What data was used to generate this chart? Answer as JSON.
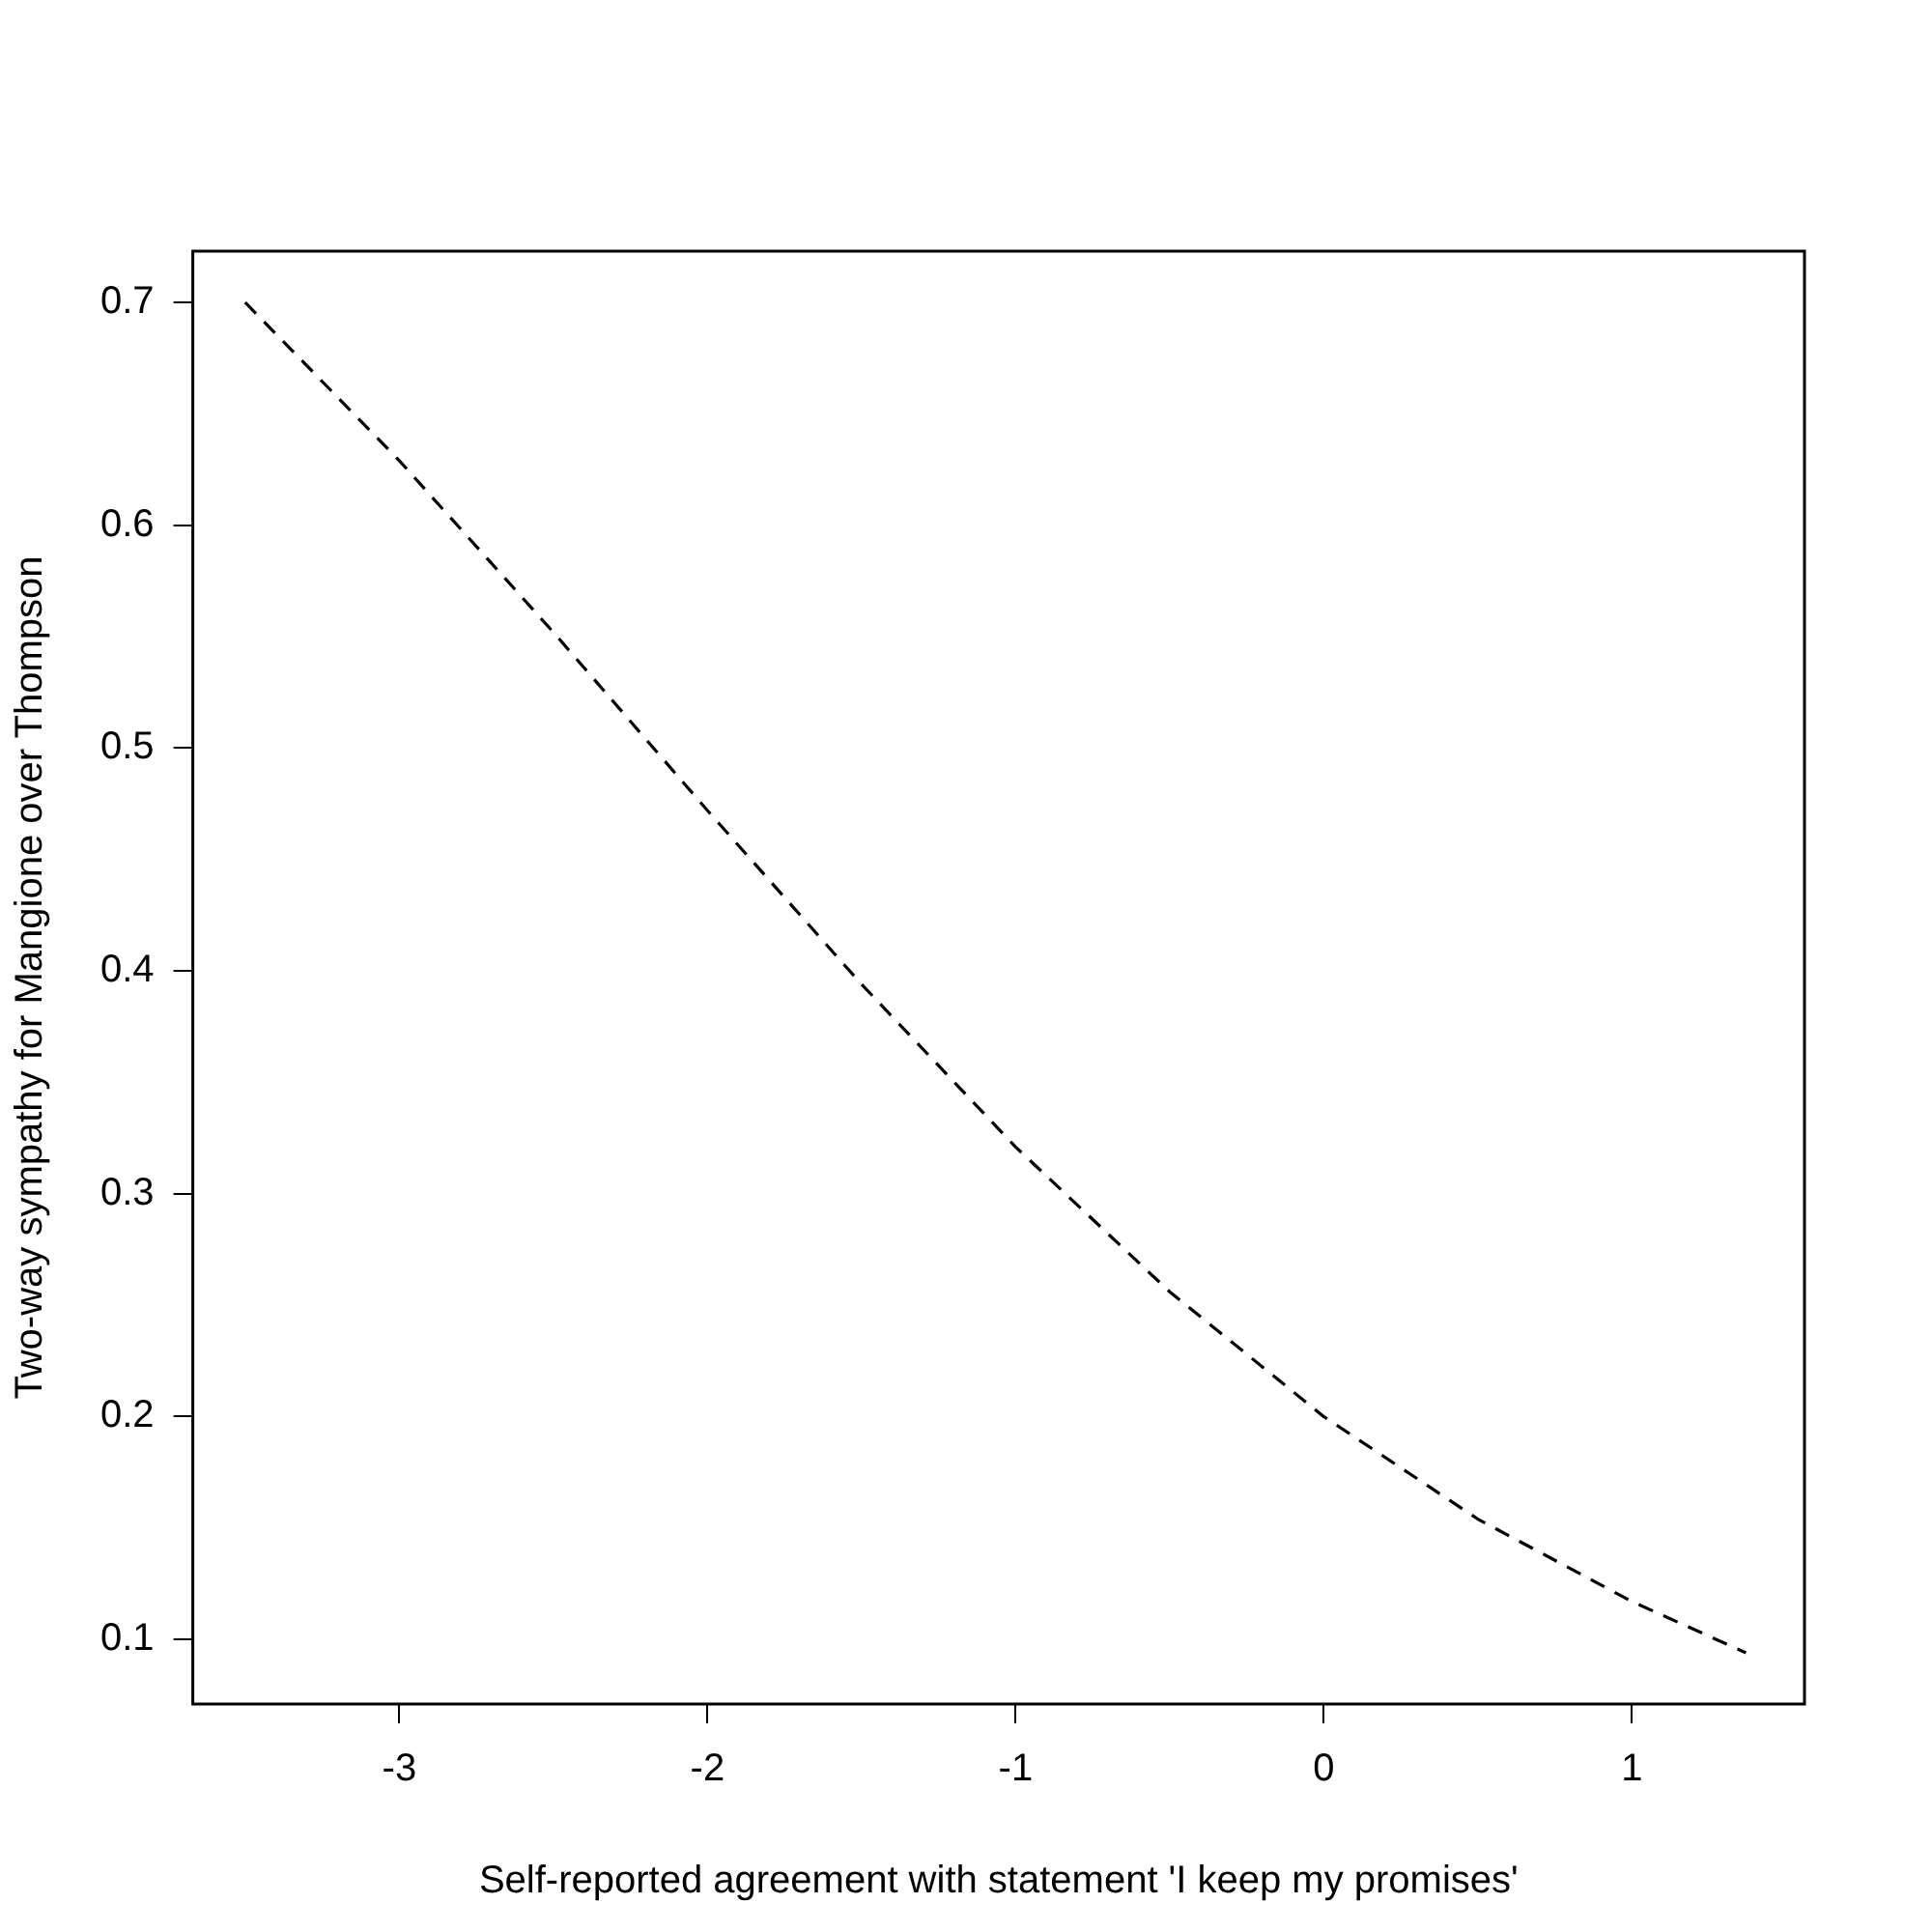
{
  "chart_data": {
    "type": "line",
    "xlabel": "Self-reported agreement with statement 'I keep my promises'",
    "ylabel": "Two-way sympathy for Mangione over Thompson",
    "x": [
      -3.5,
      -3,
      -2.5,
      -2,
      -1.5,
      -1,
      -0.5,
      0,
      0.5,
      1,
      1.37
    ],
    "series": [
      {
        "color": "#000000",
        "values": [
          0.7,
          0.629,
          0.552,
          0.472,
          0.394,
          0.321,
          0.256,
          0.2,
          0.154,
          0.117,
          0.094
        ]
      }
    ],
    "xlim": [
      -3.67,
      1.56
    ],
    "ylim": [
      0.071,
      0.723
    ],
    "xticks": [
      -3,
      -2,
      -1,
      0,
      1
    ],
    "yticks": [
      0.1,
      0.2,
      0.3,
      0.4,
      0.5,
      0.6,
      0.7
    ],
    "grid": false,
    "marker": "none",
    "line_style": "dashed"
  }
}
